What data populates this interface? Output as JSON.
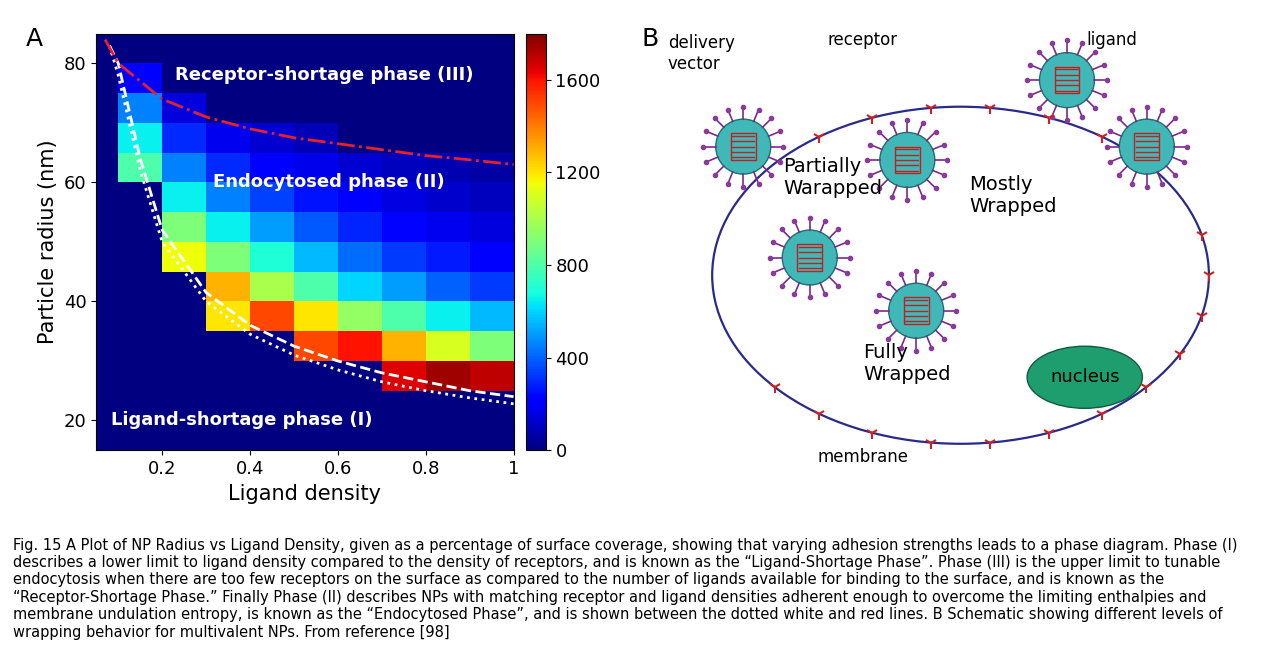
{
  "chart_data": {
    "type": "heatmap",
    "panel_label": "A",
    "x_label": "Ligand density",
    "y_label": "Particle radius (nm)",
    "xlim": [
      0.05,
      1.0
    ],
    "xticks": [
      0.2,
      0.4,
      0.6,
      0.8,
      1
    ],
    "ylim": [
      15,
      85
    ],
    "yticks": [
      20,
      40,
      60,
      80
    ],
    "x_edges": [
      0.05,
      0.1,
      0.2,
      0.3,
      0.4,
      0.5,
      0.6,
      0.7,
      0.8,
      0.9,
      1.0
    ],
    "y_edges": [
      15,
      20,
      25,
      30,
      35,
      40,
      45,
      50,
      55,
      60,
      65,
      70,
      75,
      80,
      85
    ],
    "cells": [
      [
        0,
        0,
        0,
        0,
        0,
        0,
        0,
        0,
        0,
        0
      ],
      [
        0,
        0,
        0,
        0,
        0,
        0,
        0,
        0,
        0,
        0
      ],
      [
        0,
        0,
        0,
        0,
        0,
        0,
        0,
        1650,
        1750,
        1700
      ],
      [
        0,
        0,
        0,
        0,
        0,
        1500,
        1600,
        1300,
        1100,
        900
      ],
      [
        0,
        0,
        0,
        1200,
        1500,
        1200,
        950,
        800,
        650,
        550
      ],
      [
        0,
        0,
        0,
        1300,
        1000,
        800,
        600,
        500,
        400,
        330
      ],
      [
        0,
        0,
        1150,
        900,
        700,
        550,
        420,
        330,
        270,
        220
      ],
      [
        0,
        0,
        900,
        650,
        500,
        380,
        290,
        230,
        180,
        150
      ],
      [
        0,
        0,
        650,
        450,
        340,
        260,
        200,
        160,
        120,
        100
      ],
      [
        0,
        800,
        450,
        300,
        220,
        170,
        130,
        100,
        80,
        60
      ],
      [
        0,
        650,
        300,
        180,
        130,
        90,
        0,
        0,
        0,
        0
      ],
      [
        0,
        450,
        150,
        0,
        0,
        0,
        0,
        0,
        0,
        0
      ],
      [
        0,
        200,
        0,
        0,
        0,
        0,
        0,
        0,
        0,
        0
      ],
      [
        0,
        0,
        0,
        0,
        0,
        0,
        0,
        0,
        0,
        0
      ]
    ],
    "colorbar": {
      "range": [
        0,
        1800
      ],
      "ticks": [
        0,
        400,
        800,
        1200,
        1600
      ]
    },
    "series": [
      {
        "color": "#ffffff",
        "line_style": "dotted",
        "x": [
          0.08,
          0.1,
          0.15,
          0.2,
          0.3,
          0.4,
          0.5,
          0.6,
          0.7,
          0.8,
          0.9,
          1.0
        ],
        "values": [
          83,
          78,
          62,
          50,
          40,
          34.5,
          31,
          28.5,
          26.5,
          25,
          23.8,
          22.8
        ]
      },
      {
        "color": "#ffffff",
        "line_style": "dashed",
        "x": [
          0.08,
          0.1,
          0.15,
          0.2,
          0.3,
          0.4,
          0.5,
          0.6,
          0.7,
          0.8,
          0.9,
          1.0
        ],
        "values": [
          83,
          80,
          64,
          52,
          41.5,
          36,
          32.5,
          30,
          28,
          26.5,
          25,
          24
        ]
      },
      {
        "color": "#e8202a",
        "line_style": "dashdot",
        "x": [
          0.07,
          0.1,
          0.2,
          0.3,
          0.4,
          0.5,
          0.6,
          0.7,
          0.8,
          0.9,
          1.0
        ],
        "values": [
          84,
          80,
          74,
          71,
          69,
          67.5,
          66.5,
          65.5,
          64.5,
          63.8,
          63
        ]
      }
    ],
    "annotations": [
      "Receptor-shortage phase (III)",
      "Endocytosed phase (II)",
      "Ligand-shortage phase (I)"
    ]
  },
  "diagram": {
    "panel_label": "B",
    "labels": {
      "delivery_vector": "delivery\nvector",
      "receptor": "receptor",
      "ligand": "ligand",
      "partial": "Partially\nWarapped",
      "mostly": "Mostly\nWrapped",
      "fully": "Fully\nWrapped",
      "membrane": "membrane",
      "nucleus": "nucleus"
    }
  },
  "caption": "Fig. 15 A Plot of NP Radius vs Ligand Density, given as a percentage of surface coverage, showing that varying adhesion strengths leads to a phase diagram. Phase (I) describes a lower limit to ligand density compared to the density of receptors, and is known as the “Ligand-Shortage Phase”. Phase (III) is the upper limit to tunable endocytosis when there are too few receptors on the surface as compared to the number of ligands available for binding to the surface, and is known as the “Receptor-Shortage Phase.” Finally Phase (II) describes NPs with matching receptor and ligand densities adherent enough to overcome the limiting enthalpies and membrane undulation entropy, is known as the “Endocytosed Phase”, and is shown between the dotted white and red lines. B Schematic showing different levels of wrapping behavior for multivalent NPs. From reference [98]"
}
